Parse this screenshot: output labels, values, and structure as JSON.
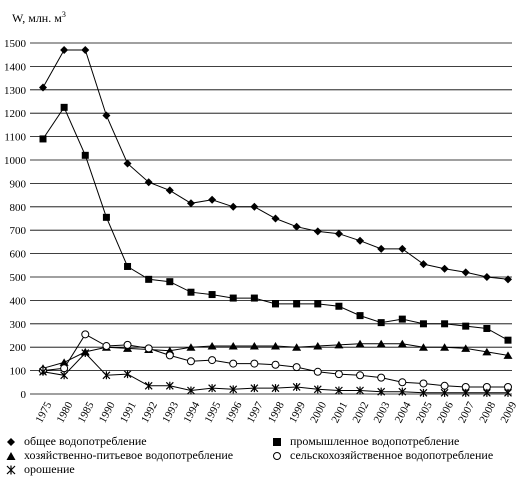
{
  "chart_data": {
    "type": "line",
    "ylabel_prefix": "W, млн. м",
    "ylabel_sup": "3",
    "xlabel": "",
    "ylim": [
      0,
      1500
    ],
    "yticks": [
      0,
      100,
      200,
      300,
      400,
      500,
      600,
      700,
      800,
      900,
      1000,
      1100,
      1200,
      1300,
      1400,
      1500
    ],
    "grid": "horizontal",
    "legend_position": "bottom",
    "categories": [
      "1975",
      "1980",
      "1985",
      "1990",
      "1991",
      "1992",
      "1993",
      "1994",
      "1995",
      "1996",
      "1997",
      "1998",
      "1999",
      "2000",
      "2001",
      "2002",
      "2003",
      "2004",
      "2005",
      "2006",
      "2007",
      "2008",
      "2009"
    ],
    "x_positions": [
      0,
      1,
      2,
      3,
      4,
      5,
      6,
      7,
      8,
      9,
      10,
      11,
      12,
      13,
      14,
      15,
      16,
      17,
      18,
      19,
      20,
      21,
      22
    ],
    "series": [
      {
        "name": "общее водопотребление",
        "marker": "diamond",
        "x": [
          0,
          1,
          2,
          3,
          4,
          5,
          6,
          7,
          8,
          9,
          10,
          11,
          12,
          13,
          14,
          15,
          16,
          17,
          18,
          19,
          20,
          21,
          22
        ],
        "values": [
          1310,
          1470,
          1470,
          1190,
          985,
          905,
          870,
          815,
          830,
          800,
          800,
          750,
          715,
          695,
          685,
          655,
          620,
          620,
          555,
          535,
          520,
          500,
          490
        ]
      },
      {
        "name": "промышленное водопотребление",
        "marker": "square",
        "x": [
          0,
          1,
          2,
          3,
          4,
          5,
          6,
          7,
          8,
          9,
          10,
          11,
          12,
          13,
          14,
          15,
          16,
          17,
          18,
          19,
          20,
          21,
          22
        ],
        "values": [
          1090,
          1225,
          1020,
          755,
          545,
          490,
          480,
          435,
          425,
          410,
          410,
          385,
          385,
          385,
          375,
          335,
          305,
          320,
          300,
          300,
          290,
          280,
          230
        ]
      },
      {
        "name": "хозяйственно-питьевое водопотребление",
        "marker": "triangle",
        "x": [
          0,
          1,
          2,
          3,
          4,
          5,
          6,
          7,
          8,
          9,
          10,
          11,
          12,
          13,
          14,
          15,
          16,
          17,
          18,
          19,
          20,
          21,
          22
        ],
        "values": [
          110,
          135,
          180,
          200,
          195,
          190,
          185,
          200,
          205,
          205,
          205,
          205,
          200,
          205,
          210,
          215,
          215,
          215,
          200,
          200,
          195,
          180,
          165
        ]
      },
      {
        "name": "сельскохозяйственное водопотребление",
        "marker": "circle",
        "x": [
          0,
          1,
          2,
          3,
          4,
          5,
          6,
          7,
          8,
          9,
          10,
          11,
          12,
          13,
          14,
          15,
          16,
          17,
          18,
          19,
          20,
          21,
          22
        ],
        "values": [
          100,
          110,
          255,
          205,
          210,
          195,
          165,
          140,
          145,
          130,
          130,
          125,
          115,
          95,
          85,
          80,
          70,
          50,
          45,
          35,
          30,
          30,
          30
        ]
      },
      {
        "name": "орошение",
        "marker": "star",
        "x": [
          0,
          1,
          2,
          3,
          4,
          5,
          6,
          7,
          8,
          9,
          10,
          11,
          12,
          13,
          14,
          15,
          16,
          17,
          18,
          19,
          20,
          21,
          22
        ],
        "values": [
          95,
          80,
          175,
          80,
          85,
          35,
          35,
          15,
          25,
          20,
          25,
          25,
          30,
          20,
          15,
          15,
          10,
          10,
          5,
          5,
          5,
          5,
          5
        ]
      }
    ]
  }
}
